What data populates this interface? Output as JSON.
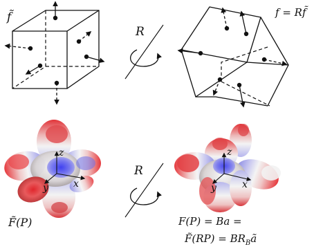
{
  "labels": {
    "top_left": "f̃",
    "top_right": "f = Rf̃",
    "rotation_top": "R",
    "rotation_bottom": "R",
    "bottom_left": "F̃(P)",
    "bottom_right_line1": "F(P) = Ba =",
    "bottom_right_line2": "F̃(RP) = BR",
    "bottom_right_sub": "B",
    "bottom_right_tail": "ã",
    "axis_z_left": "z",
    "axis_y_left": "y",
    "axis_x_left": "x",
    "axis_z_right": "z",
    "axis_y_right": "y",
    "axis_x_right": "x"
  },
  "colors": {
    "ink": "#111111",
    "surface_red": "#e3373b",
    "surface_white": "#f2f2f2",
    "surface_blue": "#3b3be6"
  }
}
